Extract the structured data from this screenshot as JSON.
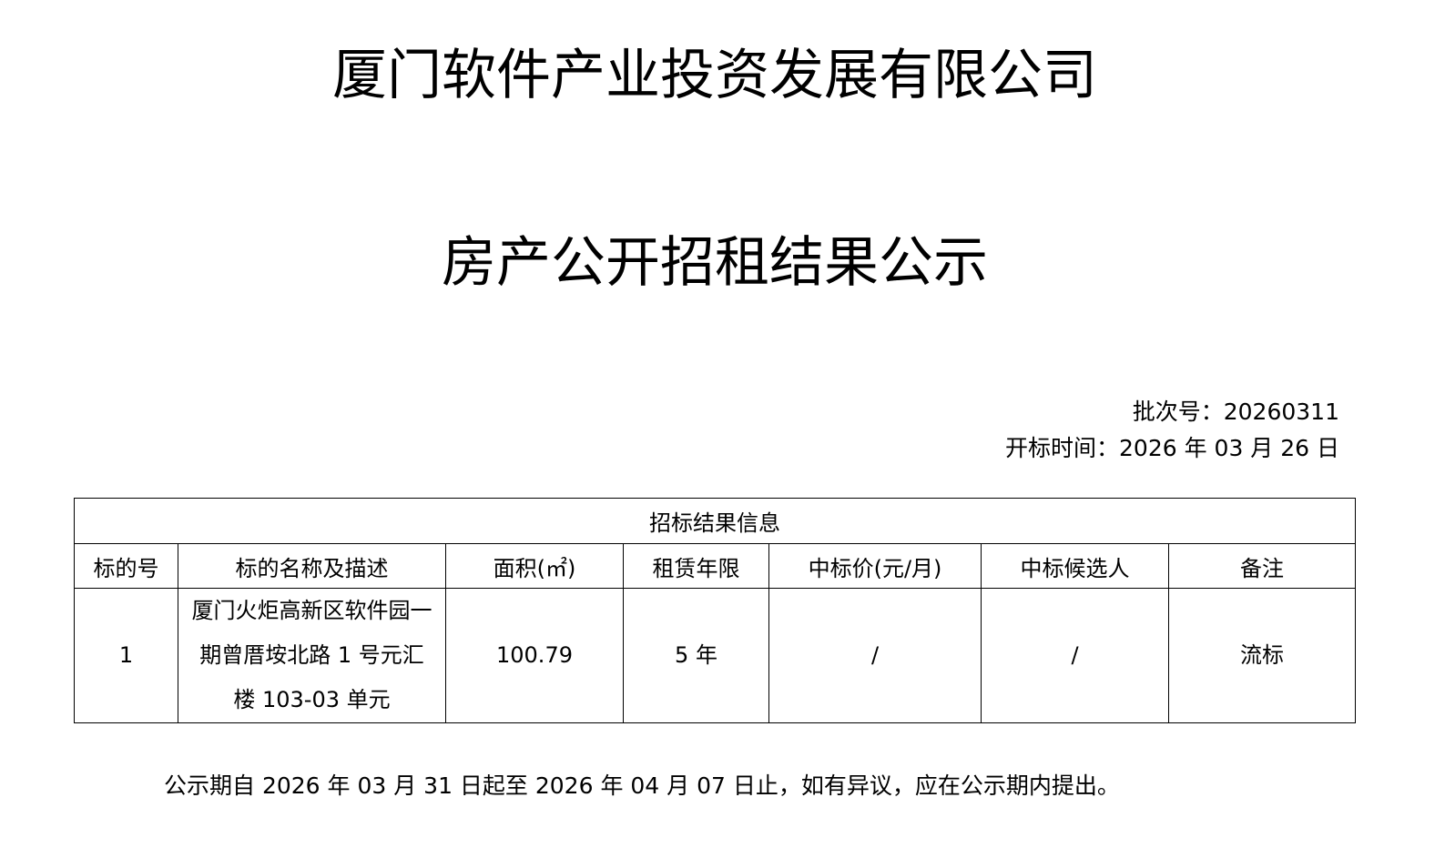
{
  "document": {
    "company": "厦门软件产业投资发展有限公司",
    "title": "房产公开招租结果公示",
    "batch_label": "批次号：",
    "batch_no": "20260311",
    "opening_label": "开标时间：",
    "opening_date": "2026 年 03 月 26 日",
    "table": {
      "caption": "招标结果信息",
      "headers": [
        "标的号",
        "标的名称及描述",
        "面积(㎡)",
        "租赁年限",
        "中标价(元/月)",
        "中标候选人",
        "备注"
      ],
      "rows": [
        [
          "1",
          "厦门火炬高新区软件园一期曾厝垵北路 1 号元汇楼 103-03 单元",
          "100.79",
          "5 年",
          "/",
          "/",
          "流标"
        ]
      ]
    },
    "footer": "公示期自 2026 年 03 月 31 日起至 2026 年 04 月 07 日止，如有异议，应在公示期内提出。"
  }
}
